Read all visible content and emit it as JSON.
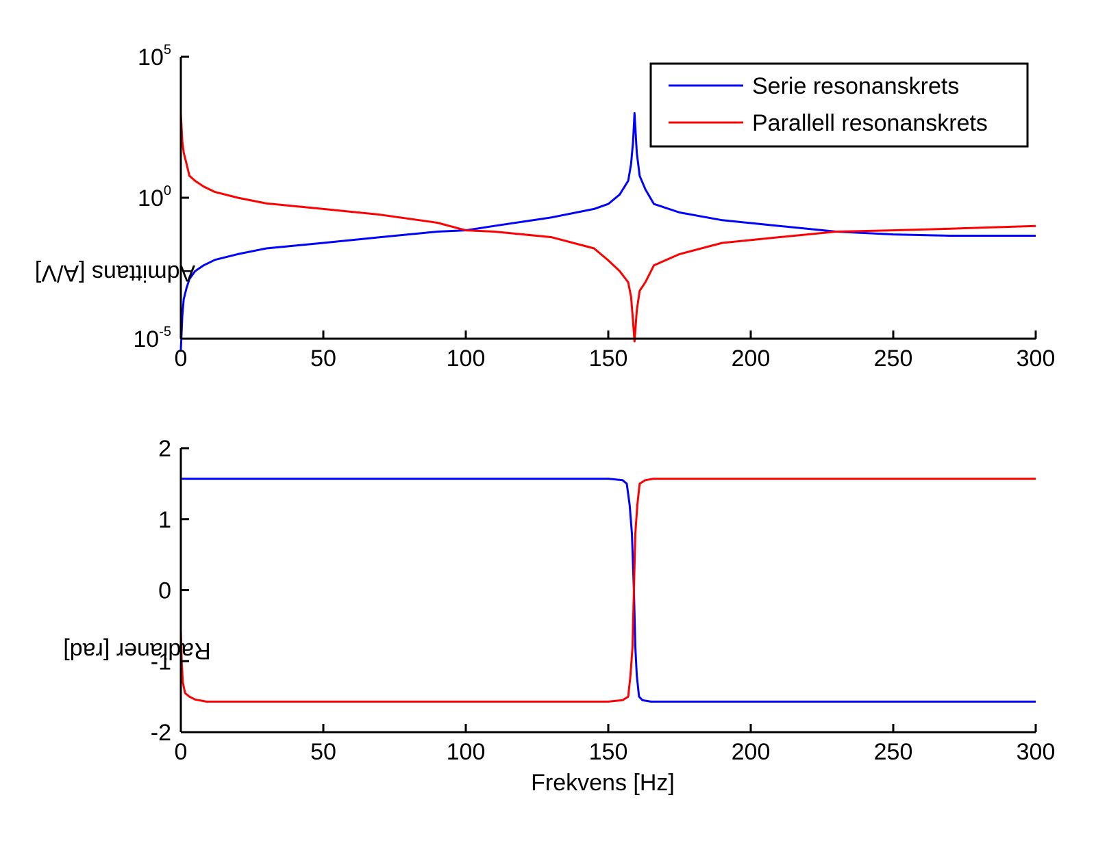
{
  "colors": {
    "series_serie": "#0000ff",
    "series_parallell": "#ff0000",
    "axis": "#000000"
  },
  "chart_data": [
    {
      "type": "line",
      "name": "admittance",
      "yscale": "log",
      "xlabel": "",
      "ylabel": "Admittans [A/V]",
      "xlim": [
        0,
        300
      ],
      "ylim": [
        1e-05,
        100000.0
      ],
      "xticks": [
        "0",
        "50",
        "100",
        "150",
        "200",
        "250",
        "300"
      ],
      "yticks": [
        {
          "base": "10",
          "exp": "-5"
        },
        {
          "base": "10",
          "exp": "0"
        },
        {
          "base": "10",
          "exp": "5"
        }
      ],
      "legend": {
        "position": "top-right",
        "entries": [
          "Serie resonanskrets",
          "Parallell resonanskrets"
        ]
      },
      "series": [
        {
          "name": "Serie resonanskrets",
          "color": "#0000ff",
          "x": [
            0,
            0.5,
            1,
            2,
            3,
            5,
            8,
            12,
            20,
            30,
            50,
            70,
            90,
            100,
            110,
            130,
            145,
            150,
            154,
            157,
            158,
            158.7,
            159.2,
            160,
            161,
            163,
            166,
            175,
            190,
            210,
            230,
            250,
            270,
            300
          ],
          "y": [
            4e-06,
            6.3e-05,
            0.00025,
            0.00063,
            0.0013,
            0.0025,
            0.004,
            0.0063,
            0.01,
            0.016,
            0.025,
            0.04,
            0.063,
            0.07,
            0.1,
            0.2,
            0.4,
            0.6,
            1.3,
            4,
            16,
            100,
            1000,
            40,
            6,
            2,
            0.6,
            0.3,
            0.16,
            0.1,
            0.063,
            0.05,
            0.045,
            0.045
          ]
        },
        {
          "name": "Parallell resonanskrets",
          "color": "#ff0000",
          "x": [
            0,
            0.5,
            1,
            2,
            3,
            5,
            8,
            12,
            20,
            30,
            50,
            70,
            90,
            100,
            110,
            130,
            145,
            150,
            154,
            157,
            158,
            158.7,
            159.2,
            160,
            161,
            163,
            166,
            175,
            190,
            210,
            230,
            250,
            270,
            300
          ],
          "y": [
            1000,
            100,
            40,
            16,
            6,
            4,
            2.5,
            1.6,
            1,
            0.63,
            0.4,
            0.25,
            0.13,
            0.07,
            0.063,
            0.04,
            0.016,
            0.006,
            0.0025,
            0.001,
            0.0003,
            4e-05,
            8e-06,
            0.0001,
            0.0005,
            0.001,
            0.004,
            0.01,
            0.025,
            0.04,
            0.063,
            0.07,
            0.08,
            0.1
          ]
        }
      ]
    },
    {
      "type": "line",
      "name": "phase",
      "yscale": "linear",
      "xlabel": "Frekvens [Hz]",
      "ylabel": "Radianer [rad]",
      "xlim": [
        0,
        300
      ],
      "ylim": [
        -2,
        2
      ],
      "xticks": [
        "0",
        "50",
        "100",
        "150",
        "200",
        "250",
        "300"
      ],
      "yticks": [
        "2",
        "1",
        "0",
        "-1",
        "-2"
      ],
      "series": [
        {
          "name": "Serie resonanskrets",
          "color": "#0000ff",
          "x": [
            0,
            50,
            100,
            150,
            155,
            156.5,
            157.5,
            158.3,
            159,
            159.5,
            160,
            160.8,
            162,
            165,
            200,
            250,
            300
          ],
          "y": [
            1.57,
            1.57,
            1.57,
            1.57,
            1.55,
            1.5,
            1.2,
            0.8,
            0,
            -0.8,
            -1.2,
            -1.5,
            -1.55,
            -1.57,
            -1.57,
            -1.57,
            -1.57
          ]
        },
        {
          "name": "Parallell resonanskrets",
          "color": "#ff0000",
          "x": [
            0,
            0.3,
            0.7,
            1.5,
            3,
            5,
            9,
            20,
            50,
            100,
            150,
            155,
            157,
            157.8,
            158.5,
            159,
            159.5,
            160.2,
            161,
            163,
            166,
            200,
            250,
            300
          ],
          "y": [
            -0.55,
            -1.0,
            -1.3,
            -1.45,
            -1.5,
            -1.54,
            -1.57,
            -1.57,
            -1.57,
            -1.57,
            -1.57,
            -1.55,
            -1.5,
            -1.2,
            -0.8,
            0,
            0.8,
            1.2,
            1.5,
            1.55,
            1.57,
            1.57,
            1.57,
            1.57
          ]
        }
      ]
    }
  ]
}
